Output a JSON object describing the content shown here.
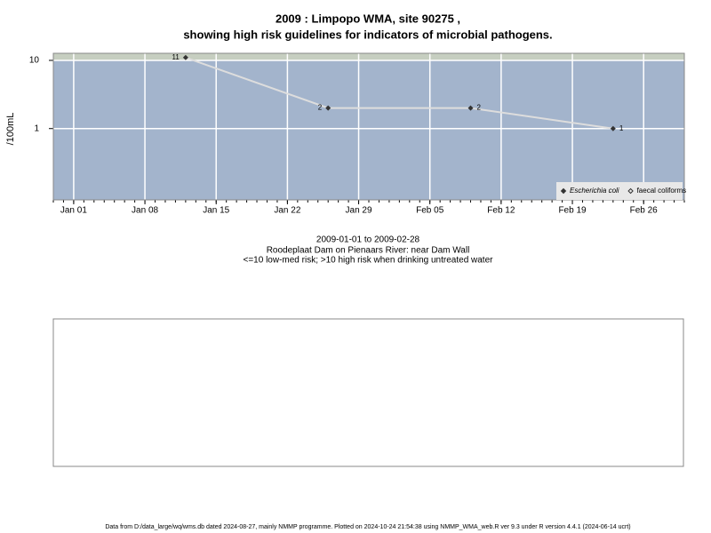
{
  "chart_data": {
    "type": "line",
    "title": "2009 : Limpopo WMA, site 90275 ,",
    "subtitle": "showing high risk guidelines for indicators of microbial pathogens.",
    "y_label": "/100mL",
    "x": [
      "2009-01-12",
      "2009-01-26",
      "2009-02-09",
      "2009-02-23"
    ],
    "series": [
      {
        "name": "Escherichia coli",
        "color": "#333333",
        "line_color": "#dddddd",
        "values": [
          11,
          2,
          2,
          1
        ]
      },
      {
        "name": "faecal coliforms",
        "color": "#333333",
        "values": [
          null,
          null,
          null,
          null
        ]
      }
    ],
    "xlim": [
      "2008-12-30",
      "2009-03-02"
    ],
    "xticks": [
      {
        "value": "2009-01-01",
        "label": "Jan 01"
      },
      {
        "value": "2009-01-08",
        "label": "Jan 08"
      },
      {
        "value": "2009-01-15",
        "label": "Jan 15"
      },
      {
        "value": "2009-01-22",
        "label": "Jan 22"
      },
      {
        "value": "2009-01-29",
        "label": "Jan 29"
      },
      {
        "value": "2009-02-05",
        "label": "Feb 05"
      },
      {
        "value": "2009-02-12",
        "label": "Feb 12"
      },
      {
        "value": "2009-02-19",
        "label": "Feb 19"
      },
      {
        "value": "2009-02-26",
        "label": "Feb 26"
      }
    ],
    "ylim": [
      0.09,
      12.7
    ],
    "yticks": [
      1,
      10
    ],
    "log_y": true,
    "grid": true,
    "high_risk_threshold": 10,
    "legend": "bottom-right",
    "notes": [
      "2009-01-01 to 2009-02-28",
      "Roodeplaat Dam on Pienaars River: near Dam Wall",
      "<=10 low-med risk; >10 high risk when drinking untreated water"
    ],
    "footer": "Data from D:/data_large/wq/wms.db dated 2024-08-27, mainly NMMP programme. Plotted on 2024-10-24 21:54:38 using NMMP_WMA_web.R ver 9.3 under R version 4.4.1 (2024-06-14 ucrt)"
  }
}
